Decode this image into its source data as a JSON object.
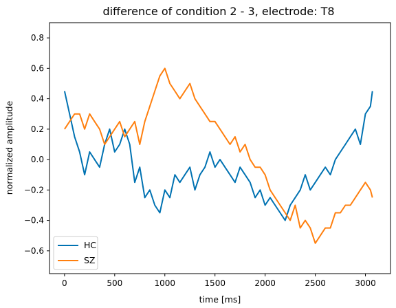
{
  "chart_data": {
    "type": "line",
    "title": "difference of condition 2 - 3, electrode: T8",
    "xlabel": "time [ms]",
    "ylabel": "normalized amplitude",
    "xlim": [
      -150,
      3250
    ],
    "ylim": [
      -0.75,
      0.9
    ],
    "xticks": [
      0,
      500,
      1000,
      1500,
      2000,
      2500,
      3000
    ],
    "yticks": [
      -0.6,
      -0.4,
      -0.2,
      0.0,
      0.2,
      0.4,
      0.6,
      0.8
    ],
    "ytick_labels": [
      "−0.6",
      "−0.4",
      "−0.2",
      "0.0",
      "0.2",
      "0.4",
      "0.6",
      "0.8"
    ],
    "grid": false,
    "legend_position": "lower-left",
    "x": [
      0,
      50,
      100,
      150,
      200,
      250,
      300,
      350,
      400,
      450,
      500,
      550,
      600,
      650,
      700,
      750,
      800,
      850,
      900,
      950,
      1000,
      1050,
      1100,
      1150,
      1200,
      1250,
      1300,
      1350,
      1400,
      1450,
      1500,
      1550,
      1600,
      1650,
      1700,
      1750,
      1800,
      1850,
      1900,
      1950,
      2000,
      2050,
      2100,
      2150,
      2200,
      2250,
      2300,
      2350,
      2400,
      2450,
      2500,
      2550,
      2600,
      2650,
      2700,
      2750,
      2800,
      2850,
      2900,
      2950,
      3000,
      3050,
      3070
    ],
    "series": [
      {
        "name": "HC",
        "color": "#0072b2",
        "values": [
          0.45,
          0.3,
          0.15,
          0.05,
          -0.1,
          0.05,
          0.0,
          -0.05,
          0.1,
          0.2,
          0.05,
          0.1,
          0.2,
          0.1,
          -0.15,
          -0.05,
          -0.25,
          -0.2,
          -0.3,
          -0.35,
          -0.2,
          -0.25,
          -0.1,
          -0.15,
          -0.1,
          -0.05,
          -0.2,
          -0.1,
          -0.05,
          0.05,
          -0.05,
          0.0,
          -0.05,
          -0.1,
          -0.15,
          -0.05,
          -0.1,
          -0.15,
          -0.25,
          -0.2,
          -0.3,
          -0.25,
          -0.3,
          -0.35,
          -0.4,
          -0.3,
          -0.25,
          -0.2,
          -0.1,
          -0.2,
          -0.15,
          -0.1,
          -0.05,
          -0.1,
          0.0,
          0.05,
          0.1,
          0.15,
          0.2,
          0.1,
          0.3,
          0.35,
          0.45
        ]
      },
      {
        "name": "SZ",
        "color": "#ff7f0e",
        "values": [
          0.2,
          0.25,
          0.3,
          0.3,
          0.2,
          0.3,
          0.25,
          0.2,
          0.1,
          0.15,
          0.2,
          0.25,
          0.15,
          0.2,
          0.25,
          0.1,
          0.25,
          0.35,
          0.45,
          0.55,
          0.6,
          0.5,
          0.45,
          0.4,
          0.45,
          0.5,
          0.4,
          0.35,
          0.3,
          0.25,
          0.25,
          0.2,
          0.15,
          0.1,
          0.15,
          0.05,
          0.1,
          0.0,
          -0.05,
          -0.05,
          -0.1,
          -0.2,
          -0.25,
          -0.3,
          -0.35,
          -0.4,
          -0.3,
          -0.45,
          -0.4,
          -0.45,
          -0.55,
          -0.5,
          -0.45,
          -0.45,
          -0.35,
          -0.35,
          -0.3,
          -0.3,
          -0.25,
          -0.2,
          -0.15,
          -0.2,
          -0.25
        ]
      }
    ]
  }
}
